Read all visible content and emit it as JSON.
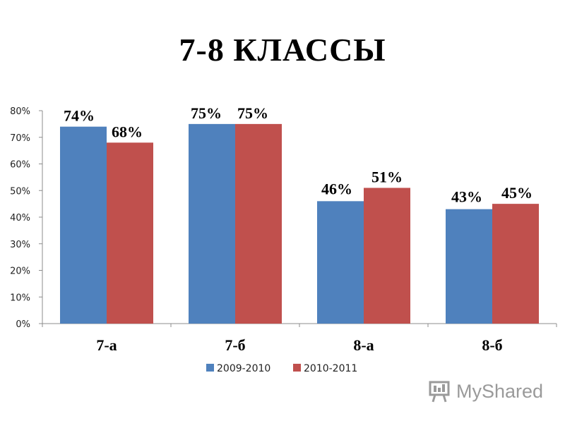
{
  "title": "7-8 КЛАССЫ",
  "watermark": {
    "text": "MyShared",
    "icon": "presentation-board-icon"
  },
  "colors": {
    "series1": "#4F81BD",
    "series2": "#C0504D",
    "axis": "#8c8c8c"
  },
  "chart_data": {
    "type": "bar",
    "title": "7-8 КЛАССЫ",
    "categories": [
      "7-а",
      "7-б",
      "8-а",
      "8-б"
    ],
    "series": [
      {
        "name": "2009-2010",
        "values": [
          74,
          75,
          46,
          43
        ],
        "labels": [
          "74%",
          "75%",
          "46%",
          "43%"
        ]
      },
      {
        "name": "2010-2011",
        "values": [
          68,
          75,
          51,
          45
        ],
        "labels": [
          "68%",
          "75%",
          "51%",
          "45%"
        ]
      }
    ],
    "yticks": [
      "0%",
      "10%",
      "20%",
      "30%",
      "40%",
      "50%",
      "60%",
      "70%",
      "80%"
    ],
    "ylim": [
      0,
      80
    ],
    "grid": false,
    "legend": "bottom"
  }
}
